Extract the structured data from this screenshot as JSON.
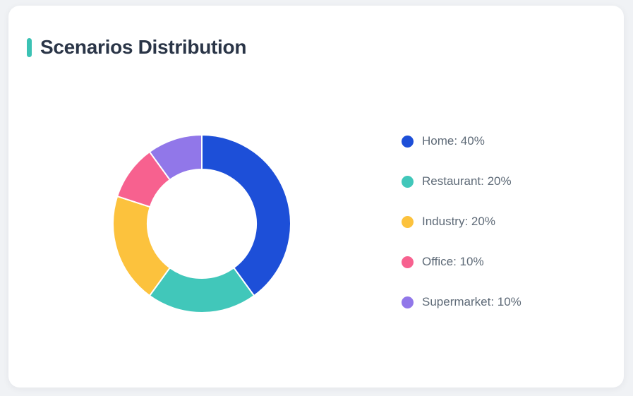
{
  "card": {
    "title": "Scenarios Distribution"
  },
  "colors": {
    "page_background": "#f0f2f5",
    "card_background": "#ffffff",
    "accent_bar": "#3bc2b4",
    "title_text": "#2a3547",
    "legend_text": "#5e6a77"
  },
  "chart_data": {
    "type": "pie",
    "variant": "donut",
    "title": "Scenarios Distribution",
    "categories": [
      "Home",
      "Restaurant",
      "Industry",
      "Office",
      "Supermarket"
    ],
    "values": [
      40,
      20,
      20,
      10,
      10
    ],
    "unit": "%",
    "colors": [
      "#1d4fd8",
      "#41c7ba",
      "#fcc23d",
      "#f7618f",
      "#9177e9"
    ],
    "legend_labels": [
      "Home: 40%",
      "Restaurant: 20%",
      "Industry: 20%",
      "Office: 10%",
      "Supermarket: 10%"
    ],
    "legend_position": "right",
    "start_angle_deg": 0,
    "direction": "clockwise",
    "inner_radius_ratio": 0.61,
    "segment_border_color": "#ffffff",
    "segment_border_width": 2
  }
}
